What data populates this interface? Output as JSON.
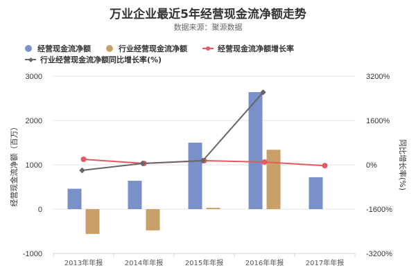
{
  "title": "万业企业最近5年经营现金流净额走势",
  "subtitle": "数据来源：聚源数据",
  "legend": [
    {
      "label": "经营现金流净额",
      "type": "bar",
      "color": "#7a90c8"
    },
    {
      "label": "行业经营现金流净额",
      "type": "bar",
      "color": "#c9a06a"
    },
    {
      "label": "经营现金流净额增长率",
      "type": "line",
      "color": "#e8585f"
    },
    {
      "label": "行业经营现金流净额同比增长率(%)",
      "type": "line",
      "color": "#666666"
    }
  ],
  "chart_data": {
    "type": "bar+line",
    "title": "万业企业最近5年经营现金流净额走势",
    "subtitle": "数据来源：聚源数据",
    "categories": [
      "2013年年报",
      "2014年年报",
      "2015年年报",
      "2016年年报",
      "2017年年报"
    ],
    "ylabel": "经营现金流净额（百万）",
    "ylabel_right": "同比增长率(%)",
    "ylim": [
      -1000,
      3000
    ],
    "yticks": [
      "3000",
      "2000",
      "1000",
      "0",
      "-1000"
    ],
    "ylim_right": [
      -3200,
      3200
    ],
    "yticks_right": [
      "3200%",
      "1600%",
      "0%",
      "-1600%",
      "-3200%"
    ],
    "grid": true,
    "legend_position": "top",
    "series": [
      {
        "name": "经营现金流净额",
        "type": "bar",
        "axis": "left",
        "color": "#7a90c8",
        "values": [
          460,
          640,
          1500,
          2640,
          720
        ]
      },
      {
        "name": "行业经营现金流净额",
        "type": "bar",
        "axis": "left",
        "color": "#c9a06a",
        "values": [
          -560,
          -480,
          30,
          1340,
          null
        ]
      },
      {
        "name": "经营现金流净额增长率",
        "type": "line",
        "axis": "right",
        "color": "#e8585f",
        "values": [
          200,
          50,
          150,
          100,
          -30
        ]
      },
      {
        "name": "行业经营现金流净额同比增长率(%)",
        "type": "line",
        "axis": "right",
        "color": "#666666",
        "values": [
          -200,
          50,
          150,
          2620,
          null
        ]
      }
    ]
  }
}
